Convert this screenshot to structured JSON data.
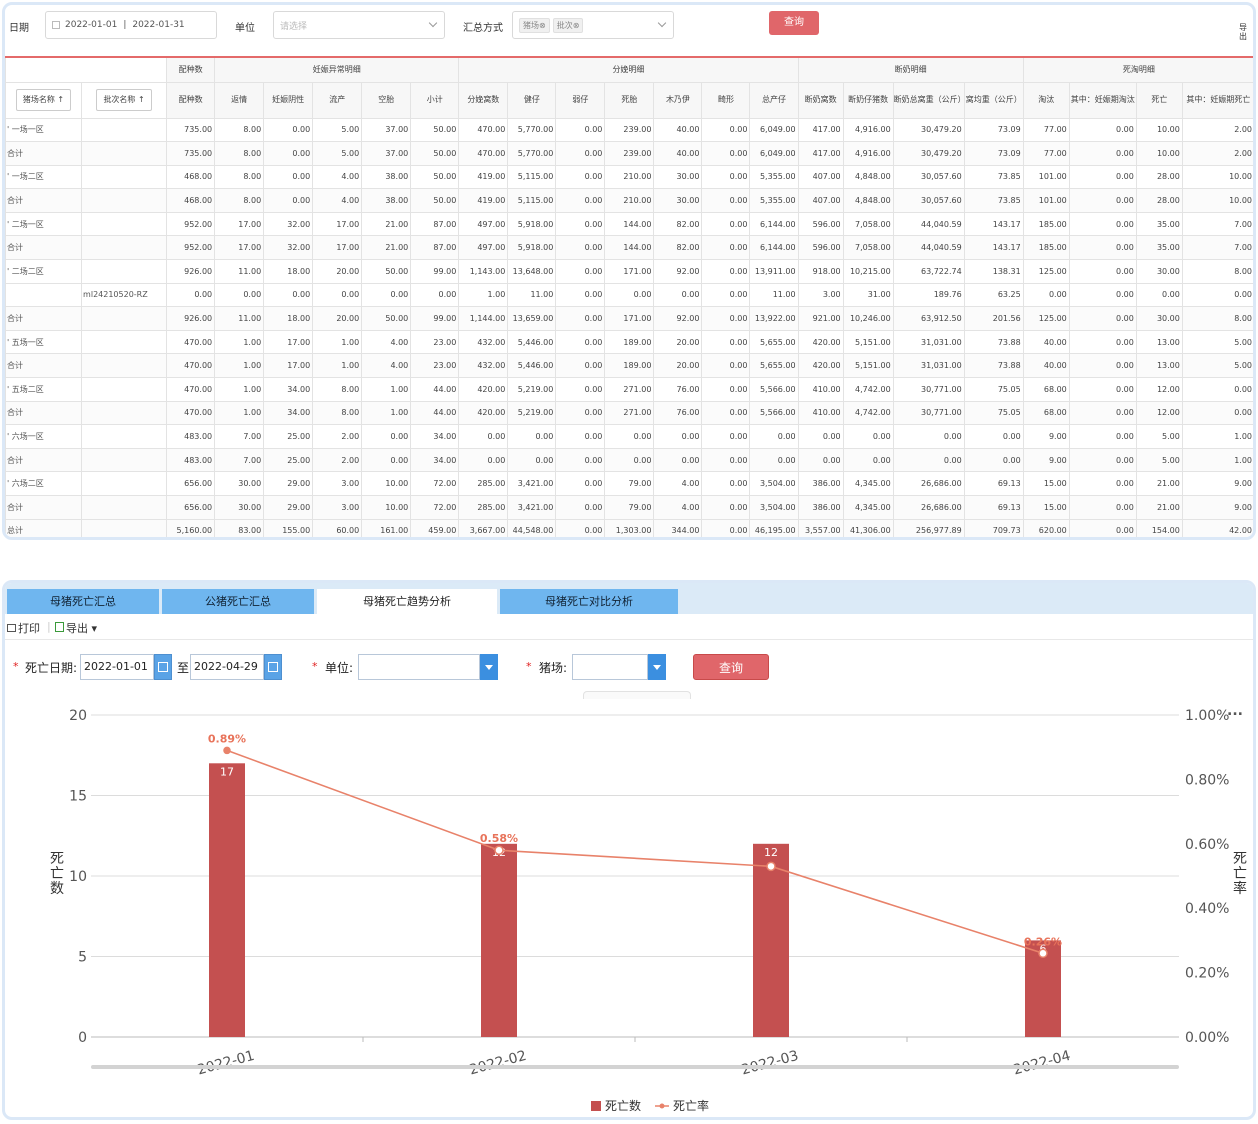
{
  "filter": {
    "date_label": "日期",
    "date_start": "2022-01-01",
    "date_sep": "|",
    "date_end": "2022-01-31",
    "unit_label": "单位",
    "unit_placeholder": "请选择",
    "summary_label": "汇总方式",
    "summary_tags": [
      "猪场⊗",
      "批次⊗"
    ],
    "query_button": "查询",
    "export_label": "导出"
  },
  "table": {
    "group_headers": [
      "配种数",
      "妊娠异常明细",
      "分娩明细",
      "断奶明细",
      "死淘明细"
    ],
    "sort_headers": [
      "猪场名称",
      "批次名称"
    ],
    "columns": [
      "配种数",
      "返情",
      "妊娠阴性",
      "流产",
      "空胎",
      "小计",
      "分娩窝数",
      "健仔",
      "弱仔",
      "死胎",
      "木乃伊",
      "畸形",
      "总产仔",
      "断奶窝数",
      "断奶仔猪数",
      "断奶总窝重（公斤）",
      "窝均重（公斤）",
      "淘汰",
      "其中：妊娠期淘汰",
      "死亡",
      "其中：妊娠期死亡"
    ],
    "rows": [
      {
        "name": "' 一场一区",
        "batch": "",
        "cells": [
          "735.00",
          "8.00",
          "0.00",
          "5.00",
          "37.00",
          "50.00",
          "470.00",
          "5,770.00",
          "0.00",
          "239.00",
          "40.00",
          "0.00",
          "6,049.00",
          "417.00",
          "4,916.00",
          "30,479.20",
          "73.09",
          "77.00",
          "0.00",
          "10.00",
          "2.00"
        ]
      },
      {
        "name": "合计",
        "batch": "",
        "total": true,
        "cells": [
          "735.00",
          "8.00",
          "0.00",
          "5.00",
          "37.00",
          "50.00",
          "470.00",
          "5,770.00",
          "0.00",
          "239.00",
          "40.00",
          "0.00",
          "6,049.00",
          "417.00",
          "4,916.00",
          "30,479.20",
          "73.09",
          "77.00",
          "0.00",
          "10.00",
          "2.00"
        ]
      },
      {
        "name": "' 一场二区",
        "batch": "",
        "cells": [
          "468.00",
          "8.00",
          "0.00",
          "4.00",
          "38.00",
          "50.00",
          "419.00",
          "5,115.00",
          "0.00",
          "210.00",
          "30.00",
          "0.00",
          "5,355.00",
          "407.00",
          "4,848.00",
          "30,057.60",
          "73.85",
          "101.00",
          "0.00",
          "28.00",
          "10.00"
        ]
      },
      {
        "name": "合计",
        "batch": "",
        "total": true,
        "cells": [
          "468.00",
          "8.00",
          "0.00",
          "4.00",
          "38.00",
          "50.00",
          "419.00",
          "5,115.00",
          "0.00",
          "210.00",
          "30.00",
          "0.00",
          "5,355.00",
          "407.00",
          "4,848.00",
          "30,057.60",
          "73.85",
          "101.00",
          "0.00",
          "28.00",
          "10.00"
        ]
      },
      {
        "name": "' 二场一区",
        "batch": "",
        "cells": [
          "952.00",
          "17.00",
          "32.00",
          "17.00",
          "21.00",
          "87.00",
          "497.00",
          "5,918.00",
          "0.00",
          "144.00",
          "82.00",
          "0.00",
          "6,144.00",
          "596.00",
          "7,058.00",
          "44,040.59",
          "143.17",
          "185.00",
          "0.00",
          "35.00",
          "7.00"
        ]
      },
      {
        "name": "合计",
        "batch": "",
        "total": true,
        "cells": [
          "952.00",
          "17.00",
          "32.00",
          "17.00",
          "21.00",
          "87.00",
          "497.00",
          "5,918.00",
          "0.00",
          "144.00",
          "82.00",
          "0.00",
          "6,144.00",
          "596.00",
          "7,058.00",
          "44,040.59",
          "143.17",
          "185.00",
          "0.00",
          "35.00",
          "7.00"
        ]
      },
      {
        "name": "' 二场二区",
        "batch": "",
        "cells": [
          "926.00",
          "11.00",
          "18.00",
          "20.00",
          "50.00",
          "99.00",
          "1,143.00",
          "13,648.00",
          "0.00",
          "171.00",
          "92.00",
          "0.00",
          "13,911.00",
          "918.00",
          "10,215.00",
          "63,722.74",
          "138.31",
          "125.00",
          "0.00",
          "30.00",
          "8.00"
        ]
      },
      {
        "name": "",
        "batch": "ml24210520-RZ",
        "cells": [
          "0.00",
          "0.00",
          "0.00",
          "0.00",
          "0.00",
          "0.00",
          "1.00",
          "11.00",
          "0.00",
          "0.00",
          "0.00",
          "0.00",
          "11.00",
          "3.00",
          "31.00",
          "189.76",
          "63.25",
          "0.00",
          "0.00",
          "0.00",
          "0.00"
        ]
      },
      {
        "name": "合计",
        "batch": "",
        "total": true,
        "cells": [
          "926.00",
          "11.00",
          "18.00",
          "20.00",
          "50.00",
          "99.00",
          "1,144.00",
          "13,659.00",
          "0.00",
          "171.00",
          "92.00",
          "0.00",
          "13,922.00",
          "921.00",
          "10,246.00",
          "63,912.50",
          "201.56",
          "125.00",
          "0.00",
          "30.00",
          "8.00"
        ]
      },
      {
        "name": "' 五场一区",
        "batch": "",
        "cells": [
          "470.00",
          "1.00",
          "17.00",
          "1.00",
          "4.00",
          "23.00",
          "432.00",
          "5,446.00",
          "0.00",
          "189.00",
          "20.00",
          "0.00",
          "5,655.00",
          "420.00",
          "5,151.00",
          "31,031.00",
          "73.88",
          "40.00",
          "0.00",
          "13.00",
          "5.00"
        ]
      },
      {
        "name": "合计",
        "batch": "",
        "total": true,
        "cells": [
          "470.00",
          "1.00",
          "17.00",
          "1.00",
          "4.00",
          "23.00",
          "432.00",
          "5,446.00",
          "0.00",
          "189.00",
          "20.00",
          "0.00",
          "5,655.00",
          "420.00",
          "5,151.00",
          "31,031.00",
          "73.88",
          "40.00",
          "0.00",
          "13.00",
          "5.00"
        ]
      },
      {
        "name": "' 五场二区",
        "batch": "",
        "cells": [
          "470.00",
          "1.00",
          "34.00",
          "8.00",
          "1.00",
          "44.00",
          "420.00",
          "5,219.00",
          "0.00",
          "271.00",
          "76.00",
          "0.00",
          "5,566.00",
          "410.00",
          "4,742.00",
          "30,771.00",
          "75.05",
          "68.00",
          "0.00",
          "12.00",
          "0.00"
        ]
      },
      {
        "name": "合计",
        "batch": "",
        "total": true,
        "cells": [
          "470.00",
          "1.00",
          "34.00",
          "8.00",
          "1.00",
          "44.00",
          "420.00",
          "5,219.00",
          "0.00",
          "271.00",
          "76.00",
          "0.00",
          "5,566.00",
          "410.00",
          "4,742.00",
          "30,771.00",
          "75.05",
          "68.00",
          "0.00",
          "12.00",
          "0.00"
        ]
      },
      {
        "name": "' 六场一区",
        "batch": "",
        "cells": [
          "483.00",
          "7.00",
          "25.00",
          "2.00",
          "0.00",
          "34.00",
          "0.00",
          "0.00",
          "0.00",
          "0.00",
          "0.00",
          "0.00",
          "0.00",
          "0.00",
          "0.00",
          "0.00",
          "0.00",
          "9.00",
          "0.00",
          "5.00",
          "1.00"
        ]
      },
      {
        "name": "合计",
        "batch": "",
        "total": true,
        "cells": [
          "483.00",
          "7.00",
          "25.00",
          "2.00",
          "0.00",
          "34.00",
          "0.00",
          "0.00",
          "0.00",
          "0.00",
          "0.00",
          "0.00",
          "0.00",
          "0.00",
          "0.00",
          "0.00",
          "0.00",
          "9.00",
          "0.00",
          "5.00",
          "1.00"
        ]
      },
      {
        "name": "' 六场二区",
        "batch": "",
        "cells": [
          "656.00",
          "30.00",
          "29.00",
          "3.00",
          "10.00",
          "72.00",
          "285.00",
          "3,421.00",
          "0.00",
          "79.00",
          "4.00",
          "0.00",
          "3,504.00",
          "386.00",
          "4,345.00",
          "26,686.00",
          "69.13",
          "15.00",
          "0.00",
          "21.00",
          "9.00"
        ]
      },
      {
        "name": "合计",
        "batch": "",
        "total": true,
        "cells": [
          "656.00",
          "30.00",
          "29.00",
          "3.00",
          "10.00",
          "72.00",
          "285.00",
          "3,421.00",
          "0.00",
          "79.00",
          "4.00",
          "0.00",
          "3,504.00",
          "386.00",
          "4,345.00",
          "26,686.00",
          "69.13",
          "15.00",
          "0.00",
          "21.00",
          "9.00"
        ]
      },
      {
        "name": "总计",
        "batch": "",
        "total": true,
        "cells": [
          "5,160.00",
          "83.00",
          "155.00",
          "60.00",
          "161.00",
          "459.00",
          "3,667.00",
          "44,548.00",
          "0.00",
          "1,303.00",
          "344.00",
          "0.00",
          "46,195.00",
          "3,557.00",
          "41,306.00",
          "256,977.89",
          "709.73",
          "620.00",
          "0.00",
          "154.00",
          "42.00"
        ]
      }
    ]
  },
  "tabs": [
    {
      "label": "母猪死亡汇总",
      "active": false
    },
    {
      "label": "公猪死亡汇总",
      "active": false
    },
    {
      "label": "母猪死亡趋势分析",
      "active": true
    },
    {
      "label": "母猪死亡对比分析",
      "active": false
    }
  ],
  "toolbar": {
    "print_label": "打印",
    "export_label": "导出 ▾"
  },
  "query": {
    "death_date_label": "死亡日期:",
    "date_start": "2022-01-01",
    "to_label": "至",
    "date_end": "2022-04-29",
    "unit_label": "单位:",
    "farm_label": "猪场:",
    "query_button": "查询",
    "required_mark": "*"
  },
  "colors": {
    "bar": "#c45050",
    "line": "#e8826a",
    "accent_red": "#e0666a",
    "tab_blue": "#6fb6ef"
  },
  "chart_data": {
    "type": "bar+line",
    "categories": [
      "2022-01",
      "2022-02",
      "2022-03",
      "2022-04"
    ],
    "series": [
      {
        "name": "死亡数",
        "kind": "bar",
        "axis": "left",
        "values": [
          17,
          12,
          12,
          6
        ],
        "labels": [
          "17",
          "12",
          "12",
          "6"
        ]
      },
      {
        "name": "死亡率",
        "kind": "line",
        "axis": "right",
        "values": [
          0.89,
          0.58,
          0.53,
          0.26
        ],
        "labels": [
          "0.89%",
          "0.58%",
          "",
          "0.26%"
        ]
      }
    ],
    "ylabel_left": "死亡数",
    "ylabel_right": "死亡率",
    "ylim_left": [
      0,
      20
    ],
    "yticks_left": [
      "0",
      "5",
      "10",
      "15",
      "20"
    ],
    "ylim_right": [
      0,
      1
    ],
    "yticks_right": [
      "0.00%",
      "0.20%",
      "0.40%",
      "0.60%",
      "0.80%",
      "1.00%"
    ],
    "grid": true,
    "legend_position": "bottom-center",
    "more_icon": "more-dots-icon"
  }
}
